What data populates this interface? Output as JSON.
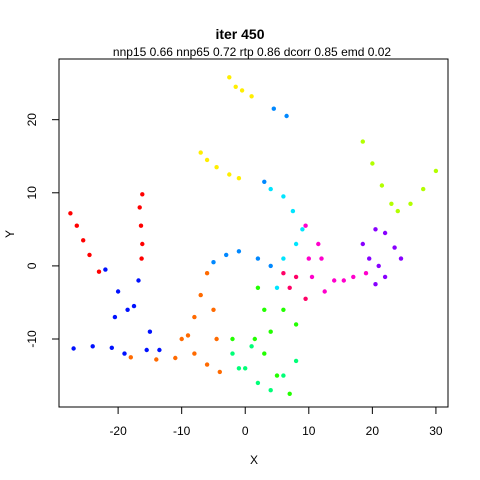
{
  "chart_data": {
    "type": "scatter",
    "title": "iter 450",
    "subtitle": "nnp15 0.66 nnp65 0.72 rtp 0.86 dcorr 0.85 emd 0.02",
    "xlabel": "X",
    "ylabel": "Y",
    "xlim": [
      -29.3,
      31.9
    ],
    "ylim": [
      -19.3,
      28.3
    ],
    "xticks": [
      -20,
      -10,
      0,
      10,
      20,
      30
    ],
    "yticks": [
      -10,
      0,
      10,
      20
    ],
    "grid": false,
    "legend": "none",
    "series": [
      {
        "color": "#ff0000",
        "points": [
          [
            -27.5,
            7.2
          ],
          [
            -26.5,
            5.5
          ],
          [
            -25.5,
            3.5
          ],
          [
            -24.5,
            1.5
          ],
          [
            -23,
            -0.8
          ],
          [
            -16.2,
            9.8
          ],
          [
            -16.6,
            8.0
          ],
          [
            -16.4,
            5.5
          ],
          [
            -16.2,
            3.0
          ],
          [
            -16.3,
            1.0
          ]
        ]
      },
      {
        "color": "#ff6a00",
        "points": [
          [
            -18,
            -12.5
          ],
          [
            -14,
            -12.8
          ],
          [
            -11,
            -12.6
          ],
          [
            -10,
            -10
          ],
          [
            -8,
            -7
          ],
          [
            -9,
            -9.5
          ],
          [
            -7,
            -4
          ],
          [
            -6,
            -1
          ],
          [
            -5,
            -6
          ],
          [
            -4.5,
            -10
          ],
          [
            -6,
            -13.5
          ],
          [
            -4,
            -14.5
          ],
          [
            -8,
            -12
          ]
        ]
      },
      {
        "color": "#ffee00",
        "points": [
          [
            -2.5,
            25.8
          ],
          [
            -1.5,
            24.5
          ],
          [
            -0.5,
            24.0
          ],
          [
            1.0,
            23.2
          ],
          [
            -7,
            15.5
          ],
          [
            -6,
            14.5
          ],
          [
            -4.5,
            13.5
          ],
          [
            -2.5,
            12.5
          ],
          [
            -1.0,
            12.0
          ]
        ]
      },
      {
        "color": "#b3ff00",
        "points": [
          [
            18.5,
            17.0
          ],
          [
            20.0,
            14.0
          ],
          [
            21.5,
            11.0
          ],
          [
            23,
            8.5
          ],
          [
            24,
            7.5
          ],
          [
            26,
            8.5
          ],
          [
            28,
            10.5
          ],
          [
            30,
            13.0
          ]
        ]
      },
      {
        "color": "#22ff00",
        "points": [
          [
            2,
            -3
          ],
          [
            3,
            -6
          ],
          [
            4,
            -9
          ],
          [
            1.5,
            -10
          ],
          [
            3,
            -12
          ],
          [
            5,
            -15
          ],
          [
            7,
            -17.5
          ],
          [
            -2,
            -10
          ],
          [
            6,
            -6
          ],
          [
            8,
            -8
          ]
        ]
      },
      {
        "color": "#00ff77",
        "points": [
          [
            -2,
            -12
          ],
          [
            0,
            -14
          ],
          [
            2,
            -16
          ],
          [
            4,
            -17
          ],
          [
            6,
            -15
          ],
          [
            8,
            -13
          ],
          [
            1,
            -11
          ],
          [
            -1,
            -14
          ]
        ]
      },
      {
        "color": "#00e5ff",
        "points": [
          [
            5,
            -3
          ],
          [
            6,
            1
          ],
          [
            8,
            3
          ],
          [
            9,
            5
          ],
          [
            7.5,
            7.5
          ],
          [
            6,
            9.5
          ],
          [
            4,
            10.5
          ]
        ]
      },
      {
        "color": "#0088ff",
        "points": [
          [
            3,
            11.5
          ],
          [
            4.5,
            21.5
          ],
          [
            6.5,
            20.5
          ],
          [
            -3,
            1.5
          ],
          [
            -1,
            2
          ],
          [
            2,
            1
          ],
          [
            4,
            0
          ],
          [
            -5,
            0.5
          ]
        ]
      },
      {
        "color": "#0011ff",
        "points": [
          [
            -27,
            -11.3
          ],
          [
            -24,
            -11
          ],
          [
            -21,
            -11.2
          ],
          [
            -19,
            -12
          ],
          [
            -22,
            -0.5
          ],
          [
            -20,
            -3.5
          ],
          [
            -18.5,
            -6
          ],
          [
            -20.5,
            -7
          ],
          [
            -16.8,
            -2
          ],
          [
            -17.5,
            -5.5
          ],
          [
            -15,
            -9
          ],
          [
            -13.5,
            -11.5
          ],
          [
            -15.5,
            -11.5
          ]
        ]
      },
      {
        "color": "#8800ff",
        "points": [
          [
            18.5,
            3.0
          ],
          [
            20.5,
            5.0
          ],
          [
            22,
            4.5
          ],
          [
            23.5,
            2.5
          ],
          [
            24.5,
            1.0
          ],
          [
            22,
            -1.5
          ],
          [
            20.5,
            -2.5
          ],
          [
            19.5,
            1.0
          ],
          [
            21,
            0
          ]
        ]
      },
      {
        "color": "#ff00cc",
        "points": [
          [
            9.5,
            5.5
          ],
          [
            11.5,
            3.0
          ],
          [
            12,
            1.0
          ],
          [
            10.5,
            -1.5
          ],
          [
            12.5,
            -3.5
          ],
          [
            14,
            -2
          ],
          [
            15.5,
            -2.0
          ],
          [
            17,
            -1.5
          ],
          [
            19,
            -1.0
          ],
          [
            10,
            1.0
          ]
        ]
      },
      {
        "color": "#ff0066",
        "points": [
          [
            6,
            -1
          ],
          [
            8,
            -1.5
          ],
          [
            7,
            -3
          ],
          [
            9.5,
            -4.5
          ]
        ]
      }
    ]
  }
}
